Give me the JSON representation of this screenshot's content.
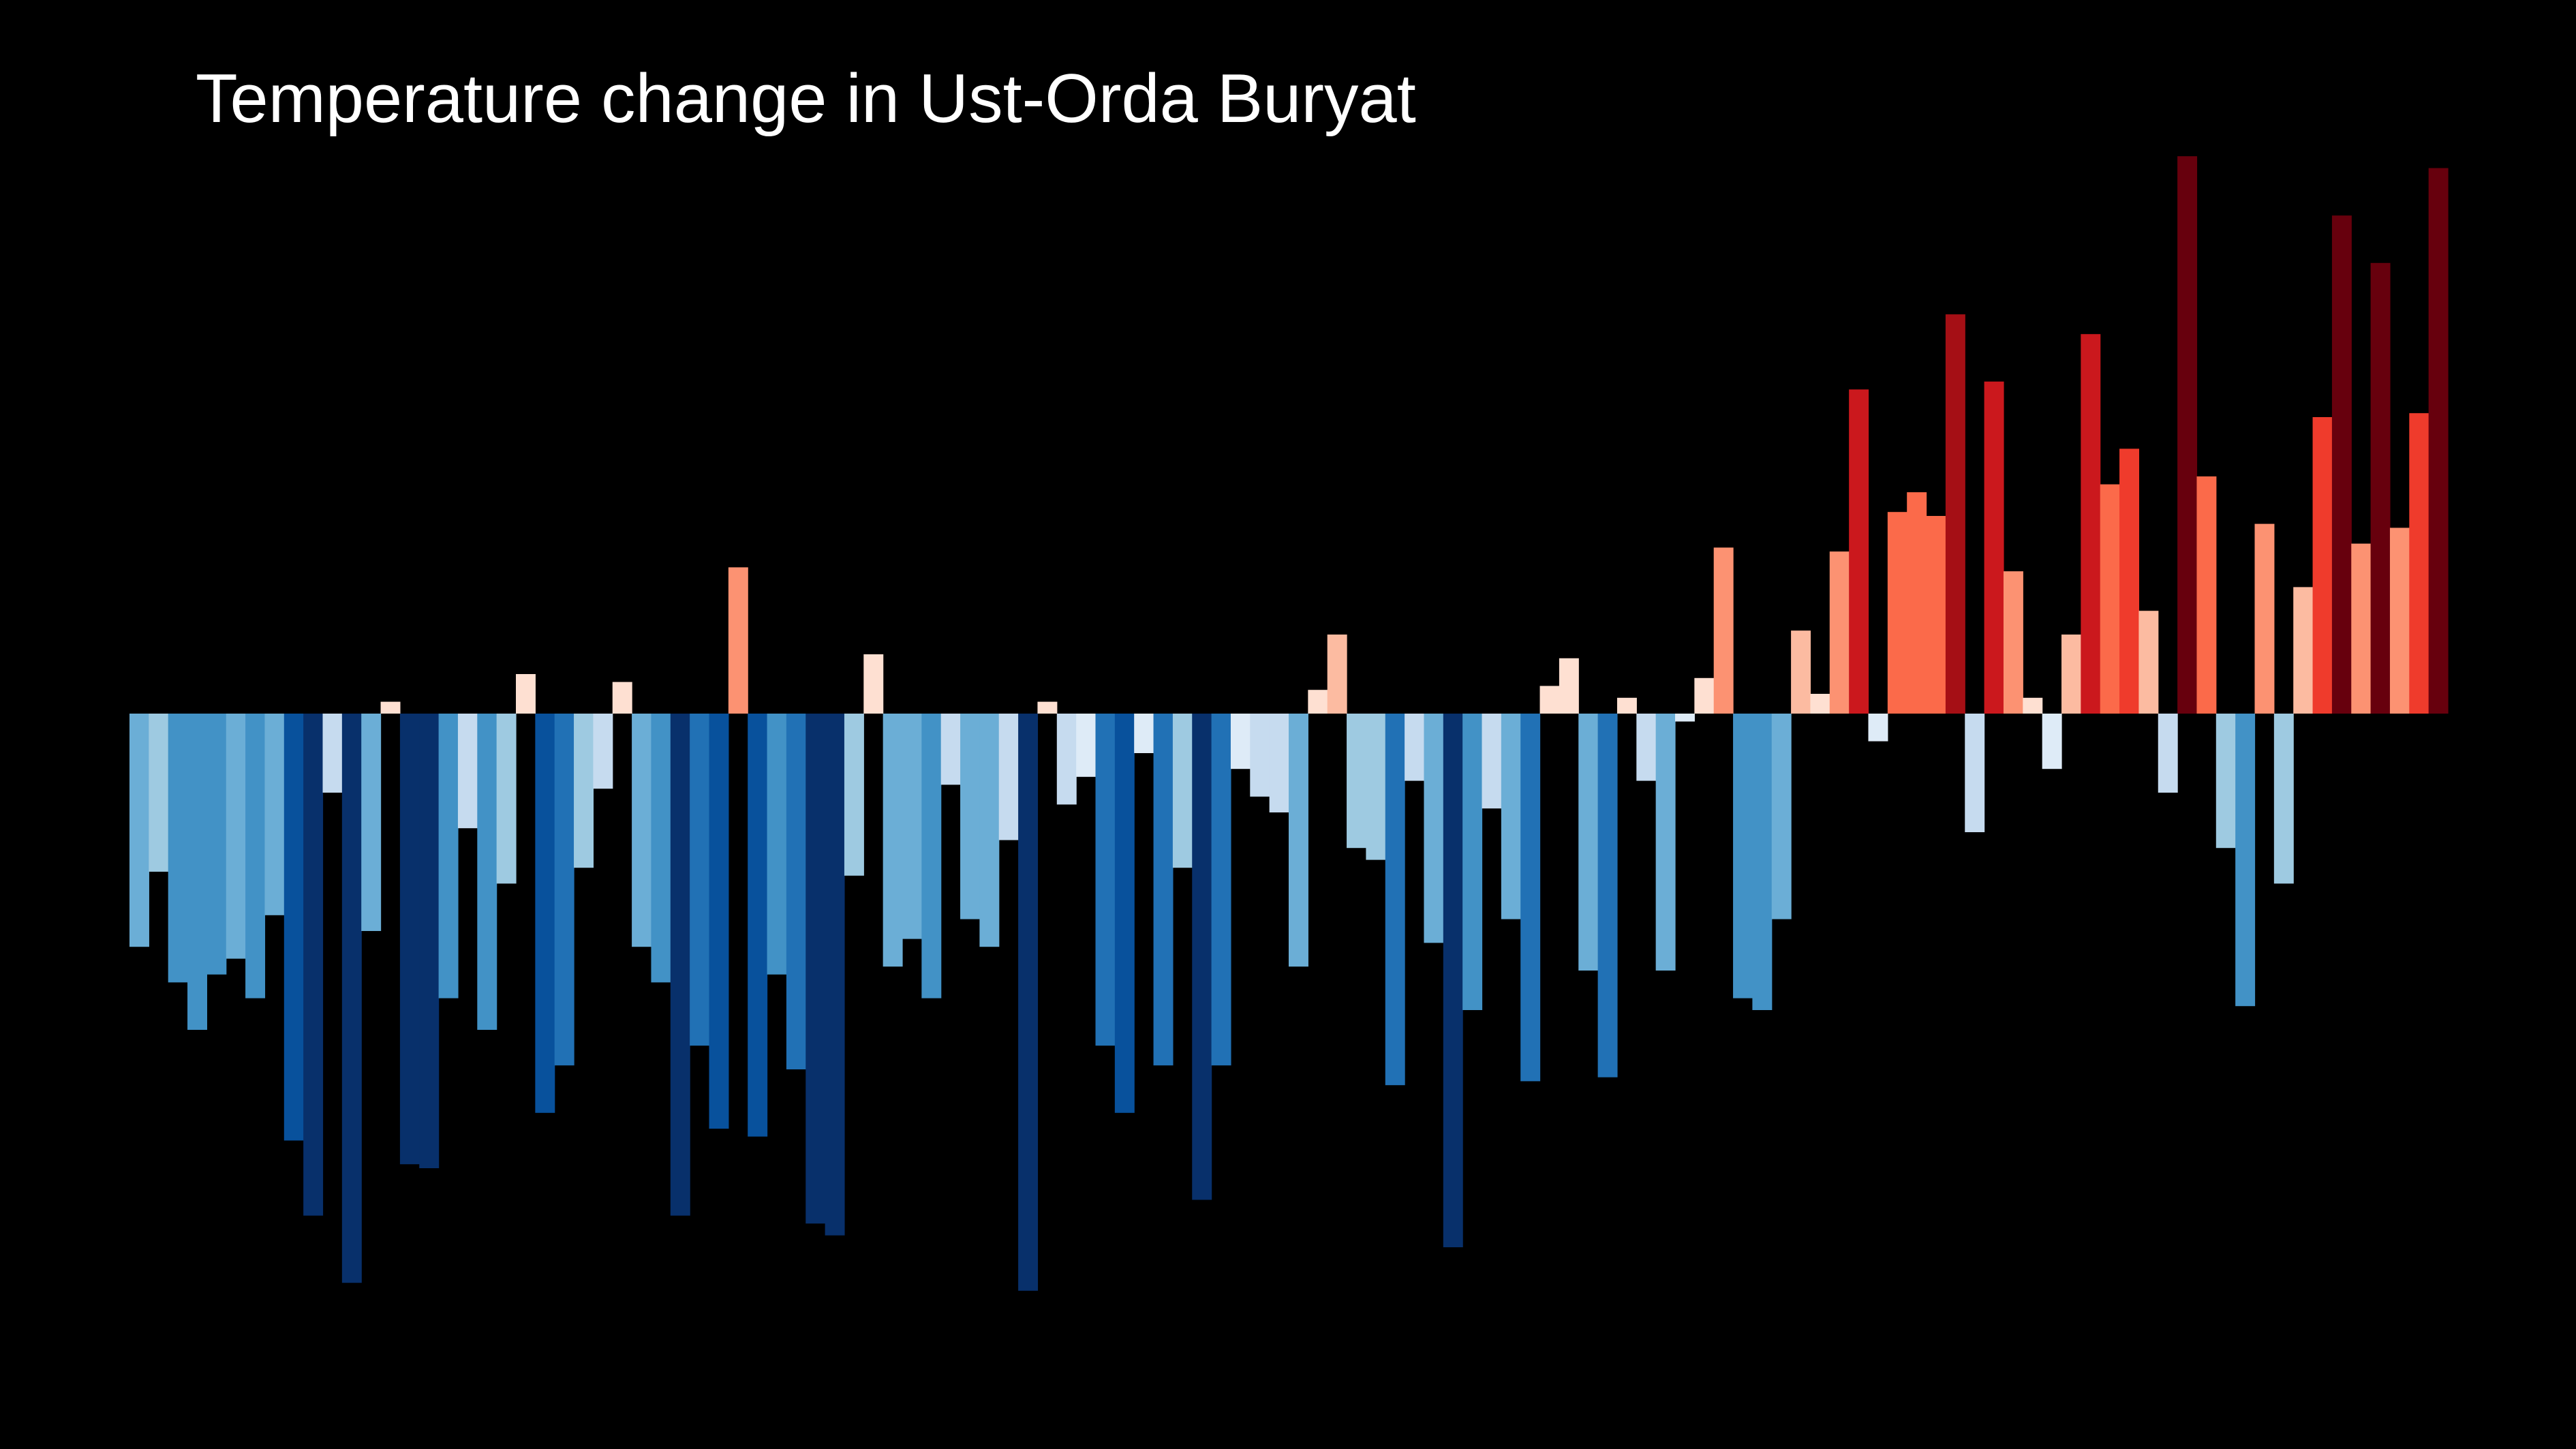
{
  "chart_data": {
    "type": "bar",
    "title": "Temperature change in Ust-Orda Buryat",
    "xlabel": "",
    "ylabel": "",
    "legend": "none",
    "grid": false,
    "baseline": 0,
    "ylim": [
      -1.44,
      1.41
    ],
    "colors": {
      "background": "#000000",
      "text": "#ffffff",
      "cold_extreme": "#08306b",
      "warm_extreme": "#67000d"
    },
    "values": [
      -0.59,
      -0.4,
      -0.68,
      -0.8,
      -0.66,
      -0.62,
      -0.72,
      -0.51,
      -1.08,
      -1.27,
      -0.2,
      -1.44,
      -0.55,
      0.03,
      -1.14,
      -1.15,
      -0.72,
      -0.29,
      -0.8,
      -0.43,
      0.1,
      -1.01,
      -0.89,
      -0.39,
      -0.19,
      0.08,
      -0.59,
      -0.68,
      -1.27,
      -0.84,
      -1.05,
      0.37,
      -1.07,
      -0.66,
      -0.9,
      -1.29,
      -1.32,
      -0.41,
      0.15,
      -0.64,
      -0.57,
      -0.72,
      -0.18,
      -0.52,
      -0.59,
      -0.32,
      -1.46,
      0.03,
      -0.23,
      -0.16,
      -0.84,
      -1.01,
      -0.1,
      -0.89,
      -0.39,
      -1.23,
      -0.89,
      -0.14,
      -0.21,
      -0.25,
      -0.64,
      0.06,
      0.2,
      -0.34,
      -0.37,
      -0.94,
      -0.17,
      -0.58,
      -1.35,
      -0.75,
      -0.24,
      -0.52,
      -0.93,
      0.07,
      0.14,
      -0.65,
      -0.92,
      0.04,
      -0.17,
      -0.65,
      -0.02,
      0.09,
      0.42,
      -0.72,
      -0.75,
      -0.52,
      0.21,
      0.05,
      0.41,
      0.82,
      -0.07,
      0.51,
      0.56,
      0.5,
      1.01,
      -0.3,
      0.84,
      0.36,
      0.04,
      -0.14,
      0.2,
      0.96,
      0.58,
      0.67,
      0.26,
      -0.2,
      1.41,
      0.6,
      -0.34,
      -0.74,
      0.48,
      -0.43,
      0.32,
      0.75,
      1.26,
      0.43,
      1.14,
      0.47,
      0.76,
      1.38
    ]
  }
}
